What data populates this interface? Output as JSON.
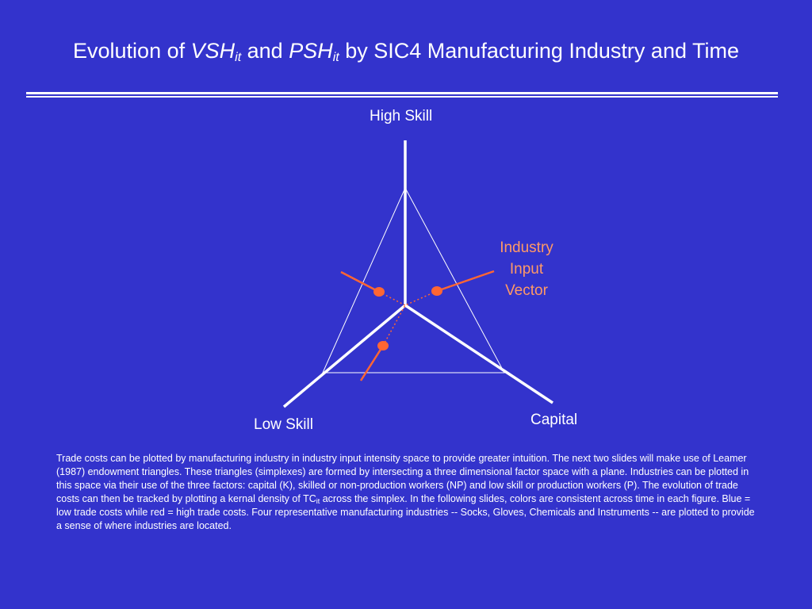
{
  "title": {
    "prefix": "Evolution of ",
    "var1_main": "VSH",
    "var1_sub": "it",
    "conj": " and ",
    "var2_main": "PSH",
    "var2_sub": "it",
    "suffix": "  by SIC4 Manufacturing Industry and Time"
  },
  "diagram": {
    "axis_high_skill": "High Skill",
    "axis_low_skill": "Low Skill",
    "axis_capital": "Capital",
    "vector_label_line1": "Industry",
    "vector_label_line2": "Input",
    "vector_label_line3": "Vector",
    "colors": {
      "background": "#3333cc",
      "axes": "#ffffff",
      "vector": "#ff6633",
      "vector_label": "#ff9966"
    }
  },
  "caption": {
    "part1": "Trade costs can be plotted by manufacturing industry in industry input intensity space to provide greater intuition.  The next two slides will make use of Leamer (1987) endowment triangles.  These triangles (simplexes) are formed by intersecting a three dimensional factor space with a plane.  Industries can be plotted in this space via their use of the three factors:  capital (K), skilled or non-production workers (NP) and low skill or production workers (P).  The evolution of trade costs can then be tracked by plotting a kernal density of TC",
    "part1_sub": "it",
    "part2": " across the simplex.  In the following slides, colors are consistent across time in each figure.  Blue = low trade costs while red = high trade costs. Four representative manufacturing industries -- Socks, Gloves, Chemicals and Instruments -- are plotted to provide a sense of where industries are located."
  }
}
